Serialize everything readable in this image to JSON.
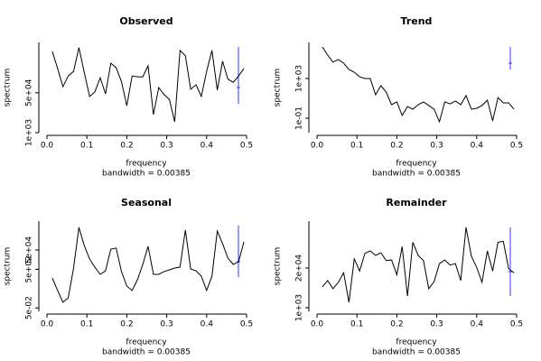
{
  "chart_data": [
    {
      "type": "line",
      "title": "Observed",
      "xlabel": "frequency",
      "ylabel": "spectrum",
      "subtitle": "bandwidth = 0.00385",
      "log_y": true,
      "color": "#000000",
      "x": [
        0.0133,
        0.0267,
        0.04,
        0.0533,
        0.0667,
        0.08,
        0.0933,
        0.1067,
        0.12,
        0.1333,
        0.1467,
        0.16,
        0.1733,
        0.1867,
        0.2,
        0.2133,
        0.2267,
        0.24,
        0.2533,
        0.2667,
        0.28,
        0.2933,
        0.3067,
        0.32,
        0.3333,
        0.3467,
        0.36,
        0.3733,
        0.3867,
        0.4,
        0.4133,
        0.4267,
        0.44,
        0.4533,
        0.4667,
        0.48,
        0.4933
      ],
      "values": [
        2900000,
        540000,
        91000,
        260000,
        410000,
        4200000,
        380000,
        35000,
        54000,
        220000,
        45000,
        910000,
        590000,
        150000,
        14000,
        260000,
        240000,
        240000,
        710000,
        5900,
        83000,
        42000,
        26000,
        2900,
        3200000,
        1900000,
        71000,
        110000,
        35000,
        410000,
        3200000,
        65000,
        1100000,
        190000,
        140000,
        260000,
        540000
      ],
      "xlim": [
        0,
        0.5
      ],
      "ylim": [
        1000,
        7000000
      ],
      "xticks": [
        {
          "value": 0,
          "label": "0.0"
        },
        0.1,
        0.2,
        0.3,
        0.4,
        0.5
      ],
      "yticks": [
        {
          "value": 1000,
          "label": "1e+03"
        },
        {
          "value": 50000,
          "label": "5e+04"
        }
      ]
    },
    {
      "type": "line",
      "title": "Trend",
      "xlabel": "frequency",
      "ylabel": "spectrum",
      "subtitle": "bandwidth = 0.00385",
      "log_y": true,
      "color": "#000000",
      "x": [
        0.0133,
        0.0267,
        0.04,
        0.0533,
        0.0667,
        0.08,
        0.0933,
        0.1067,
        0.12,
        0.1333,
        0.1467,
        0.16,
        0.1733,
        0.1867,
        0.2,
        0.2133,
        0.2267,
        0.24,
        0.2533,
        0.2667,
        0.28,
        0.2933,
        0.3067,
        0.32,
        0.3333,
        0.3467,
        0.36,
        0.3733,
        0.3867,
        0.4,
        0.4133,
        0.4267,
        0.44,
        0.4533,
        0.4667,
        0.48,
        0.4933
      ],
      "values": [
        1500000,
        230000,
        44000,
        81000,
        35000,
        8100,
        4300,
        1500,
        1000,
        1000,
        23,
        190,
        43,
        2.3,
        4.4,
        0.19,
        1.5,
        0.81,
        2.3,
        4.4,
        1.9,
        0.81,
        0.044,
        4.4,
        2.8,
        5.4,
        2.3,
        19,
        0.81,
        1,
        1.9,
        6.6,
        0.054,
        12,
        3.5,
        3.5,
        0.81
      ],
      "xlim": [
        0,
        0.5
      ],
      "ylim": [
        0.0035,
        4300000
      ],
      "xticks": [
        {
          "value": 0,
          "label": "0.0"
        },
        0.1,
        0.2,
        0.3,
        0.4,
        0.5
      ],
      "yticks": [
        {
          "value": 0.1,
          "label": "1e-01"
        },
        {
          "value": 1000,
          "label": "1e+03"
        }
      ]
    },
    {
      "type": "line",
      "title": "Seasonal",
      "xlabel": "frequency",
      "ylabel": "spectrum",
      "subtitle": "bandwidth = 0.00385",
      "log_y": true,
      "color": "#000000",
      "x": [
        0.0133,
        0.0267,
        0.04,
        0.0533,
        0.0667,
        0.08,
        0.0933,
        0.1067,
        0.12,
        0.1333,
        0.1467,
        0.16,
        0.1733,
        0.1867,
        0.2,
        0.2133,
        0.2267,
        0.24,
        0.2533,
        0.2667,
        0.28,
        0.2933,
        0.3067,
        0.32,
        0.3333,
        0.3467,
        0.36,
        0.3733,
        0.3867,
        0.4,
        0.4133,
        0.4267,
        0.44,
        0.4533,
        0.4667,
        0.48,
        0.4933
      ],
      "values": [
        63,
        3.2,
        0.19,
        0.56,
        680,
        11000000,
        150000,
        5900,
        830,
        150,
        350,
        62000,
        78000,
        290,
        9.1,
        3.2,
        42,
        1600,
        120000,
        150,
        150,
        290,
        440,
        680,
        830,
        5800000,
        550,
        350,
        98,
        3.2,
        98,
        4600000,
        220000,
        7200,
        1600,
        3100,
        350000
      ],
      "xlim": [
        0,
        0.5
      ],
      "ylim": [
        0.022,
        49000000
      ],
      "xticks": [
        {
          "value": 0,
          "label": "0.0"
        },
        0.1,
        0.2,
        0.3,
        0.4,
        0.5
      ],
      "yticks": [
        {
          "value": 0.05,
          "label": "5e-02"
        },
        {
          "value": 500,
          "label": "5e+02"
        },
        {
          "value": 50000,
          "label": "5e+04"
        }
      ]
    },
    {
      "type": "line",
      "title": "Remainder",
      "xlabel": "frequency",
      "ylabel": "spectrum",
      "subtitle": "bandwidth = 0.00385",
      "log_y": true,
      "color": "#000000",
      "x": [
        0.0133,
        0.0267,
        0.04,
        0.0533,
        0.0667,
        0.08,
        0.0933,
        0.1067,
        0.12,
        0.1333,
        0.1467,
        0.16,
        0.1733,
        0.1867,
        0.2,
        0.2133,
        0.2267,
        0.24,
        0.2533,
        0.2667,
        0.28,
        0.2933,
        0.3067,
        0.32,
        0.3333,
        0.3467,
        0.36,
        0.3733,
        0.3867,
        0.4,
        0.4133,
        0.4267,
        0.44,
        0.4533,
        0.4667,
        0.48,
        0.4933
      ],
      "values": [
        4800,
        7800,
        4200,
        6800,
        14000,
        1500,
        40000,
        16000,
        60000,
        73000,
        52000,
        63000,
        35000,
        37000,
        12000,
        100000,
        2400,
        140000,
        52000,
        35000,
        4200,
        7200,
        28000,
        37000,
        25000,
        28000,
        7800,
        430000,
        49000,
        21000,
        6800,
        73000,
        16000,
        140000,
        150000,
        19000,
        14000
      ],
      "xlim": [
        0,
        0.5
      ],
      "ylim": [
        760,
        690000
      ],
      "xticks": [
        {
          "value": 0,
          "label": "0.0"
        },
        0.1,
        0.2,
        0.3,
        0.4,
        0.5
      ],
      "yticks": [
        {
          "value": 1000,
          "label": "1e+03"
        },
        {
          "value": 20000,
          "label": "2e+04"
        }
      ]
    }
  ]
}
